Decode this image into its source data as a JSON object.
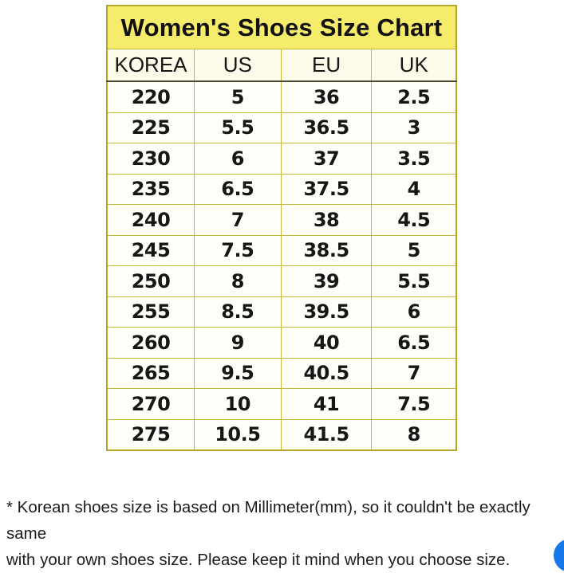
{
  "table": {
    "title": "Women's Shoes Size Chart",
    "headers": [
      "KOREA",
      "US",
      "EU",
      "UK"
    ],
    "rows": [
      [
        "220",
        "5",
        "36",
        "2.5"
      ],
      [
        "225",
        "5.5",
        "36.5",
        "3"
      ],
      [
        "230",
        "6",
        "37",
        "3.5"
      ],
      [
        "235",
        "6.5",
        "37.5",
        "4"
      ],
      [
        "240",
        "7",
        "38",
        "4.5"
      ],
      [
        "245",
        "7.5",
        "38.5",
        "5"
      ],
      [
        "250",
        "8",
        "39",
        "5.5"
      ],
      [
        "255",
        "8.5",
        "39.5",
        "6"
      ],
      [
        "260",
        "9",
        "40",
        "6.5"
      ],
      [
        "265",
        "9.5",
        "40.5",
        "7"
      ],
      [
        "270",
        "10",
        "41",
        "7.5"
      ],
      [
        "275",
        "10.5",
        "41.5",
        "8"
      ]
    ],
    "colors": {
      "title_bg": "#f6ec6c",
      "header_bg": "#fcfae8",
      "row_bg": "#fffef9",
      "border": "#c3b83a",
      "outer_border": "#b2a827",
      "dark_divider": "#4a4733"
    }
  },
  "footnote": {
    "line1": "* Korean shoes size is based on Millimeter(mm), so it couldn't be exactly same",
    "line2": "with your own shoes size. Please keep it mind when you choose size."
  },
  "chat_button": {
    "color": "#1578e8",
    "icon": "chat-bubble-icon"
  }
}
